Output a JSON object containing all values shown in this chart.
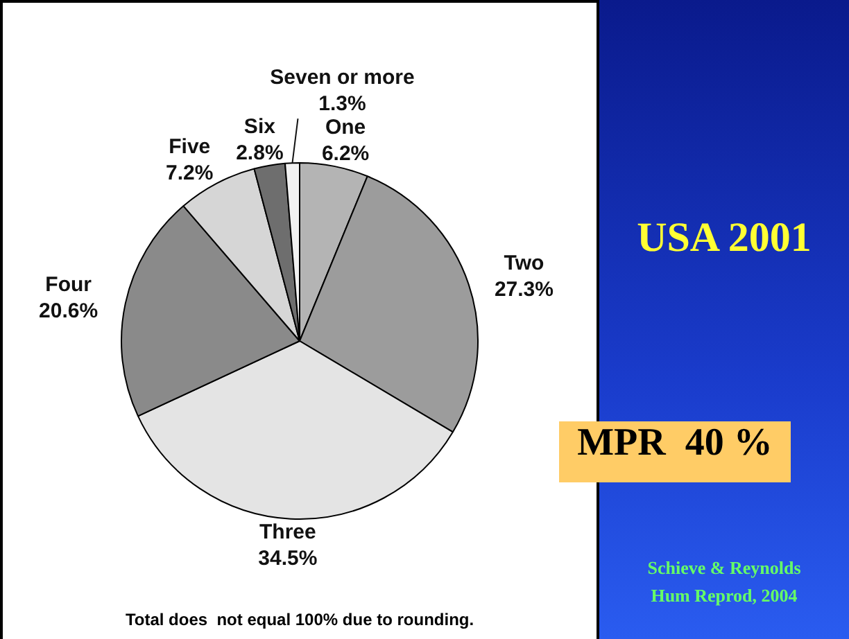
{
  "chart_data": {
    "type": "pie",
    "categories": [
      "One",
      "Two",
      "Three",
      "Four",
      "Five",
      "Six",
      "Seven or more"
    ],
    "values": [
      6.2,
      27.3,
      34.5,
      20.6,
      7.2,
      2.8,
      1.3
    ],
    "value_labels": [
      "6.2%",
      "27.3%",
      "34.5%",
      "20.6%",
      "7.2%",
      "2.8%",
      "1.3%"
    ],
    "colors": [
      "#b4b4b4",
      "#9c9c9c",
      "#e4e4e4",
      "#8a8a8a",
      "#d6d6d6",
      "#6e6e6e",
      "#f2f2f2"
    ],
    "legend": false,
    "annotations": [
      "Total does  not equal 100% due to rounding.",
      "USA 2001",
      "MPR  40 %",
      "Schieve & Reynolds",
      "Hum Reprod, 2004"
    ]
  }
}
